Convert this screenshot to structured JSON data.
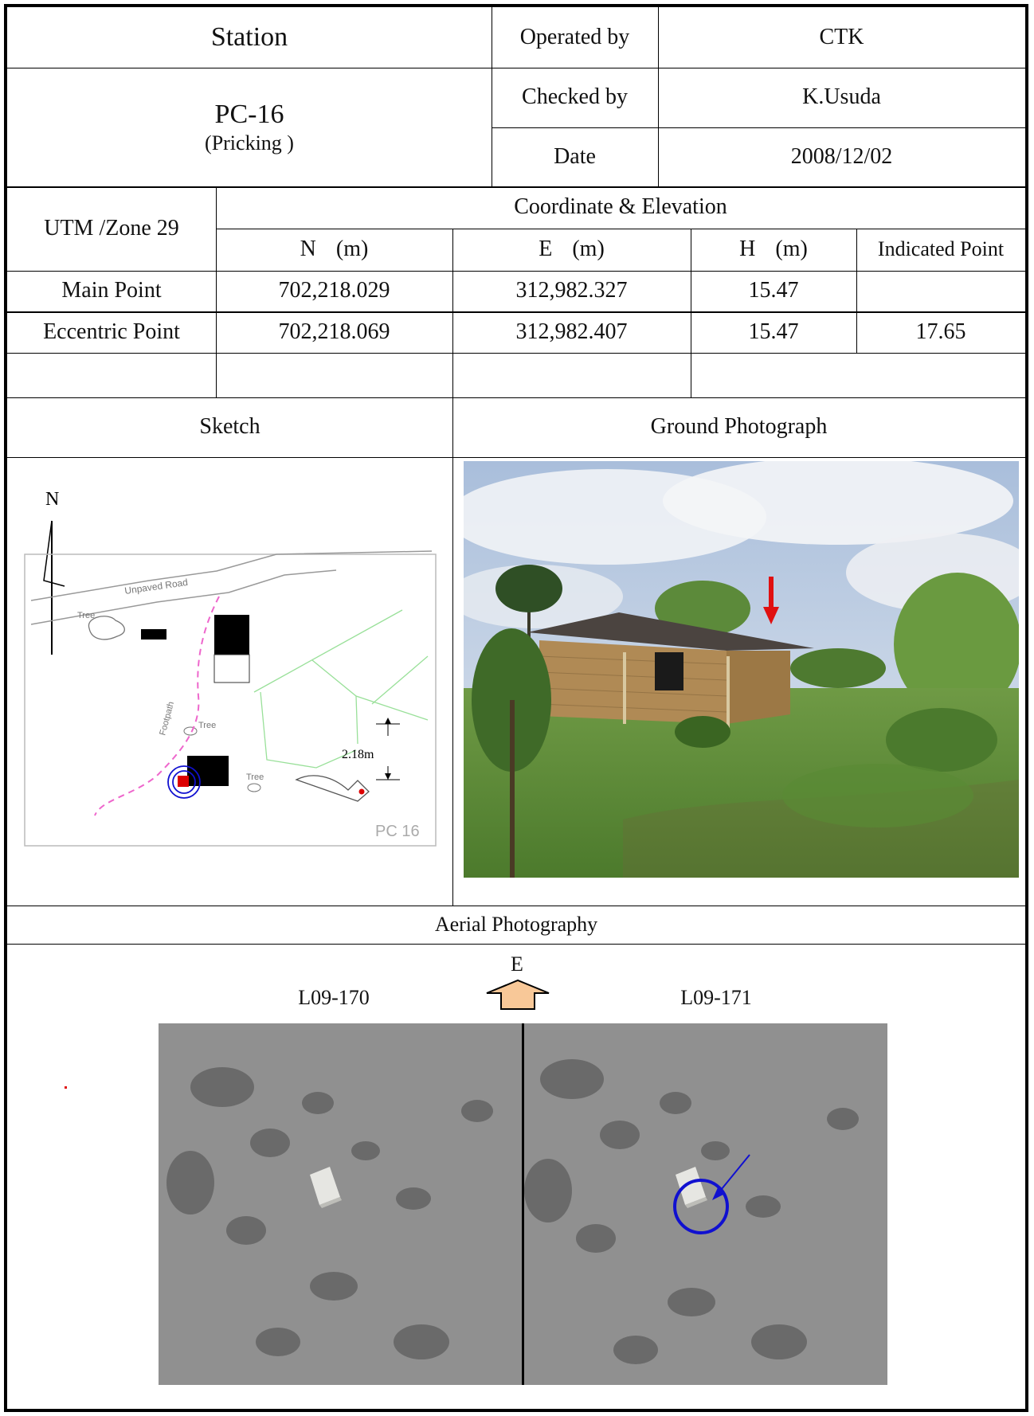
{
  "header": {
    "station_label": "Station",
    "station_id": "PC-16",
    "station_sub": "(Pricking )",
    "operated_by_label": "Operated by",
    "operated_by_value": "CTK",
    "checked_by_label": "Checked by",
    "checked_by_value": "K.Usuda",
    "date_label": "Date",
    "date_value": "2008/12/02"
  },
  "coords": {
    "zone_label": "UTM /Zone 29",
    "group_label": "Coordinate & Elevation",
    "col_n": "N (m)",
    "col_e": "E (m)",
    "col_h": "H (m)",
    "col_ip": "Indicated Point",
    "rows": [
      {
        "label": "Main Point",
        "n": "702,218.029",
        "e": "312,982.327",
        "h": "15.47",
        "ip": ""
      },
      {
        "label": "Eccentric Point",
        "n": "702,218.069",
        "e": "312,982.407",
        "h": "15.47",
        "ip": "17.65"
      }
    ]
  },
  "sections": {
    "sketch_label": "Sketch",
    "ground_photo_label": "Ground Photograph",
    "aerial_label": "Aerial Photography"
  },
  "sketch": {
    "north": "N",
    "road": "Unpaved Road",
    "tree1": "Tree",
    "tree2": "Tree",
    "tree3": "Tree",
    "footpath": "Footpath",
    "distance": "2.18m",
    "station_tag": "PC 16"
  },
  "aerial": {
    "direction": "E",
    "left_id": "L09-170",
    "right_id": "L09-171"
  },
  "colors": {
    "arrow_red": "#e01010",
    "circle_blue": "#1010d0",
    "arrow_fill": "#f8c898"
  }
}
